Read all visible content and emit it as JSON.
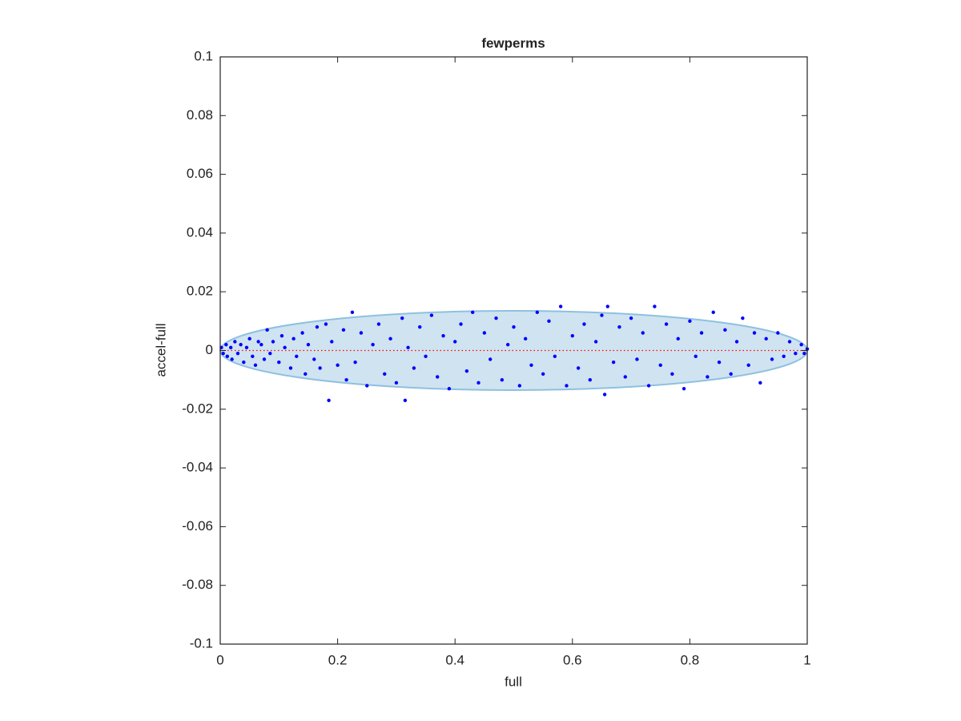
{
  "chart_data": {
    "type": "scatter",
    "title": "fewperms",
    "x_label": "full",
    "y_label": "accel-full",
    "x": [
      0.002,
      0.005,
      0.01,
      0.012,
      0.018,
      0.02,
      0.025,
      0.03,
      0.035,
      0.04,
      0.045,
      0.05,
      0.055,
      0.06,
      0.065,
      0.07,
      0.075,
      0.08,
      0.085,
      0.09,
      0.1,
      0.105,
      0.11,
      0.12,
      0.125,
      0.13,
      0.14,
      0.145,
      0.15,
      0.16,
      0.165,
      0.17,
      0.18,
      0.185,
      0.19,
      0.2,
      0.21,
      0.215,
      0.225,
      0.23,
      0.24,
      0.25,
      0.26,
      0.27,
      0.28,
      0.29,
      0.3,
      0.31,
      0.315,
      0.32,
      0.33,
      0.34,
      0.35,
      0.36,
      0.37,
      0.38,
      0.39,
      0.4,
      0.41,
      0.42,
      0.43,
      0.44,
      0.45,
      0.46,
      0.47,
      0.48,
      0.49,
      0.5,
      0.51,
      0.52,
      0.53,
      0.54,
      0.55,
      0.56,
      0.57,
      0.58,
      0.59,
      0.6,
      0.61,
      0.62,
      0.63,
      0.64,
      0.65,
      0.655,
      0.66,
      0.67,
      0.68,
      0.69,
      0.7,
      0.71,
      0.72,
      0.73,
      0.74,
      0.75,
      0.76,
      0.77,
      0.78,
      0.79,
      0.8,
      0.81,
      0.82,
      0.83,
      0.84,
      0.85,
      0.86,
      0.87,
      0.88,
      0.89,
      0.9,
      0.91,
      0.92,
      0.93,
      0.94,
      0.95,
      0.96,
      0.97,
      0.98,
      0.99,
      0.995,
      1.0
    ],
    "values": [
      0.001,
      -0.001,
      0.002,
      -0.002,
      0.001,
      -0.003,
      0.003,
      -0.001,
      0.002,
      -0.004,
      0.001,
      0.004,
      -0.002,
      -0.005,
      0.003,
      0.002,
      -0.003,
      0.007,
      -0.001,
      0.003,
      -0.004,
      0.005,
      0.001,
      -0.006,
      0.004,
      -0.002,
      0.006,
      -0.008,
      0.002,
      -0.003,
      0.008,
      -0.006,
      0.009,
      -0.017,
      0.003,
      -0.005,
      0.007,
      -0.01,
      0.013,
      -0.004,
      0.006,
      -0.012,
      0.002,
      0.009,
      -0.008,
      0.004,
      -0.011,
      0.011,
      -0.017,
      0.001,
      -0.006,
      0.008,
      -0.002,
      0.012,
      -0.009,
      0.005,
      -0.013,
      0.003,
      0.009,
      -0.007,
      0.013,
      -0.011,
      0.006,
      -0.003,
      0.011,
      -0.01,
      0.002,
      0.008,
      -0.012,
      0.004,
      -0.005,
      0.013,
      -0.008,
      0.01,
      -0.002,
      0.015,
      -0.012,
      0.005,
      -0.006,
      0.009,
      -0.01,
      0.003,
      0.012,
      -0.015,
      0.015,
      -0.004,
      0.008,
      -0.009,
      0.011,
      -0.003,
      0.006,
      -0.012,
      0.015,
      -0.005,
      0.009,
      -0.008,
      0.004,
      -0.013,
      0.01,
      -0.002,
      0.006,
      -0.009,
      0.013,
      -0.004,
      0.007,
      -0.008,
      0.003,
      0.011,
      -0.005,
      0.006,
      -0.011,
      0.004,
      -0.003,
      0.006,
      -0.002,
      0.003,
      -0.001,
      0.002,
      -0.001,
      0.0005
    ],
    "color": "#0000ff",
    "ellipse": {
      "center": [
        0.5,
        0
      ],
      "radii": [
        0.5,
        0.0135
      ],
      "color": "#cfe3f1",
      "edge": "#8fc0e0"
    },
    "reference_line": {
      "y": 0,
      "color": "#ff0000"
    },
    "xlim": [
      0,
      1
    ],
    "ylim": [
      -0.1,
      0.1
    ],
    "xticks": [
      0,
      0.2,
      0.4,
      0.6,
      0.8,
      1
    ],
    "yticks": [
      -0.1,
      -0.08,
      -0.06,
      -0.04,
      -0.02,
      0,
      0.02,
      0.04,
      0.06,
      0.08,
      0.1
    ]
  }
}
